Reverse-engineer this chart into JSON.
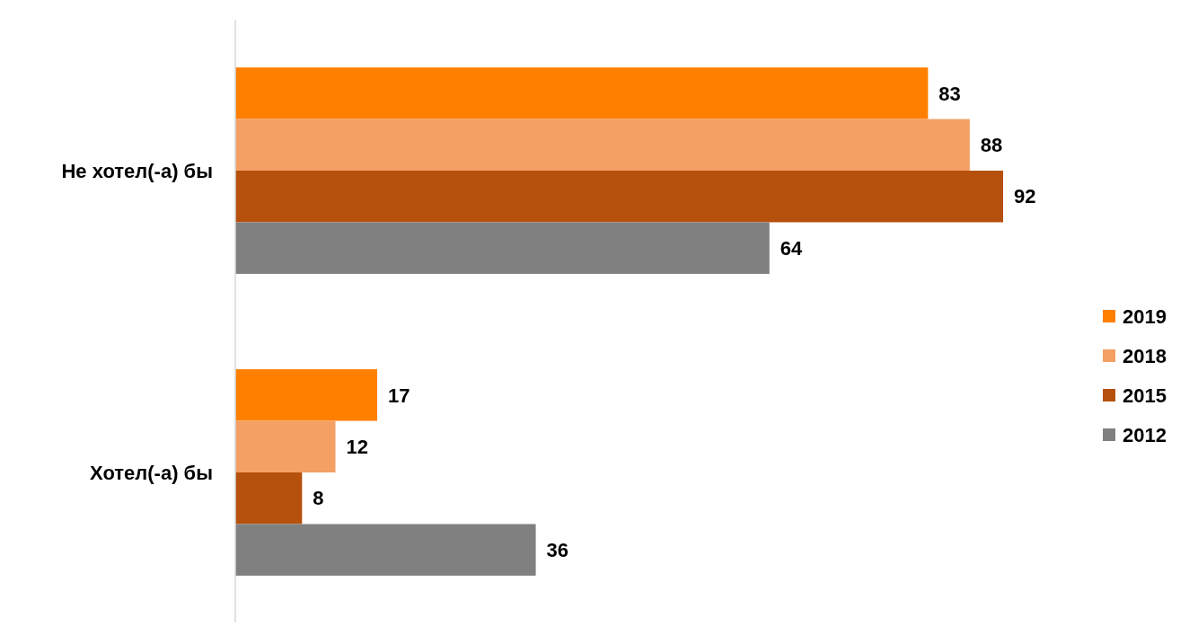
{
  "chart_data": {
    "type": "bar",
    "orientation": "horizontal",
    "categories": [
      "Не хотел(-а) бы",
      "Хотел(-а) бы"
    ],
    "series": [
      {
        "name": "2019",
        "color": "#ff8000",
        "values": [
          83,
          17
        ]
      },
      {
        "name": "2018",
        "color": "#f4a064",
        "values": [
          88,
          12
        ]
      },
      {
        "name": "2015",
        "color": "#b5510c",
        "values": [
          92,
          8
        ]
      },
      {
        "name": "2012",
        "color": "#808080",
        "values": [
          64,
          36
        ]
      }
    ],
    "data_labels": true,
    "legend": "right"
  }
}
